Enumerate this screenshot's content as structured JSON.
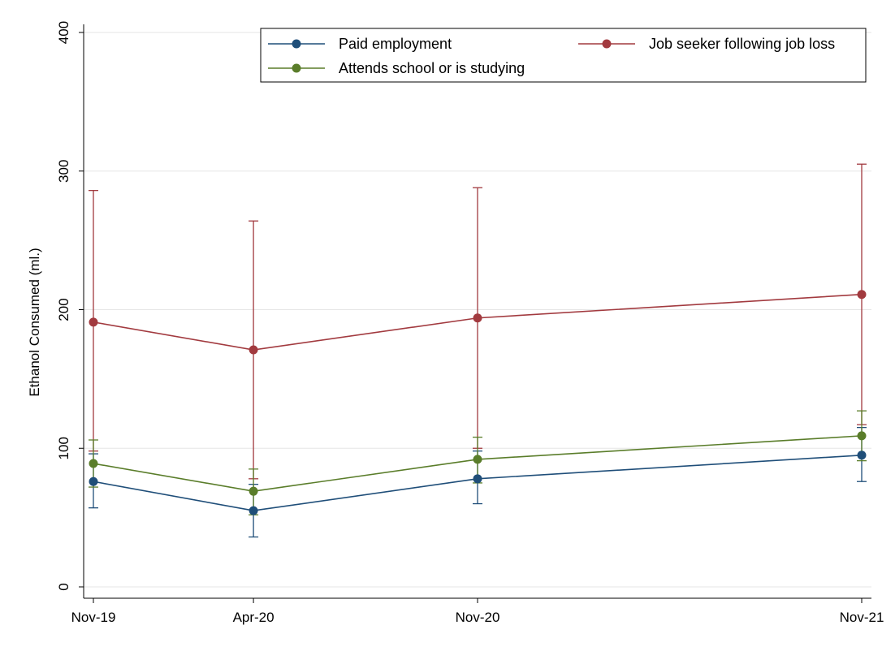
{
  "chart_data": {
    "type": "line",
    "ylabel": "Ethanol Consumed (ml.)",
    "xlabel": "",
    "x_dates": [
      "2019-11",
      "2020-04",
      "2020-11",
      "2021-11"
    ],
    "categories": [
      "Nov-19",
      "Apr-20",
      "Nov-20",
      "Nov-21"
    ],
    "yticks": [
      0,
      100,
      200,
      300,
      400
    ],
    "ylim": [
      0,
      400
    ],
    "grid": true,
    "error_bars": true,
    "legend_position": "top-right",
    "series": [
      {
        "name": "Paid employment",
        "color": "#1f4e79",
        "values": [
          76,
          55,
          78,
          95
        ],
        "lower": [
          57,
          36,
          60,
          76
        ],
        "upper": [
          96,
          74,
          98,
          115
        ]
      },
      {
        "name": "Job seeker following job loss",
        "color": "#a23a3f",
        "values": [
          191,
          171,
          194,
          211
        ],
        "lower": [
          98,
          78,
          100,
          117
        ],
        "upper": [
          286,
          264,
          288,
          305
        ]
      },
      {
        "name": "Attends school or is studying",
        "color": "#5a7d2a",
        "values": [
          89,
          69,
          92,
          109
        ],
        "lower": [
          72,
          52,
          75,
          91
        ],
        "upper": [
          106,
          85,
          108,
          127
        ]
      }
    ]
  }
}
